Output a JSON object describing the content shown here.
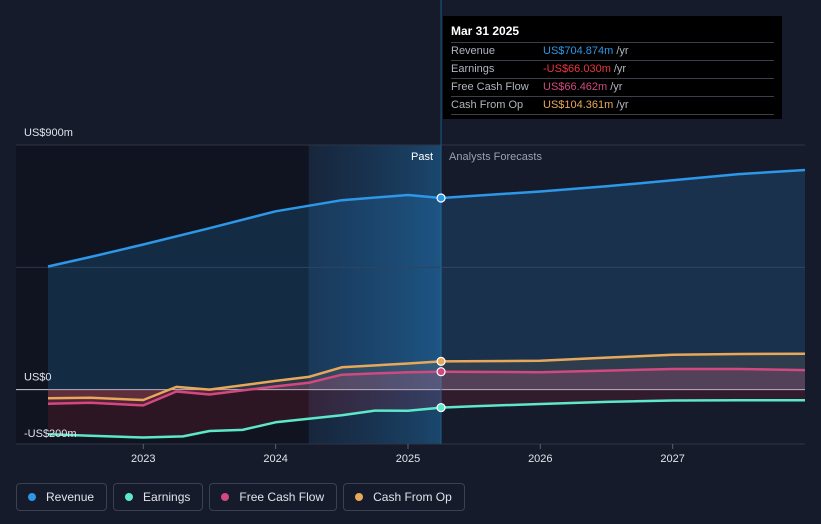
{
  "chart_data": {
    "type": "area",
    "ylabels": [
      "US$900m",
      "US$0",
      "-US$200m"
    ],
    "yticks": [
      900,
      0,
      -200
    ],
    "ylim": [
      -200,
      900
    ],
    "xlim": [
      2022.28,
      2028.0
    ],
    "xticks": [
      "2023",
      "2024",
      "2025",
      "2026",
      "2027"
    ],
    "past_label": "Past",
    "forecast_label": "Analysts Forecasts",
    "past_region_start": 2024.25,
    "divider_x": 2025.25,
    "series": [
      {
        "name": "Revenue",
        "color": "#2d97e8",
        "points": [
          [
            2022.28,
            453
          ],
          [
            2022.6,
            488
          ],
          [
            2023.0,
            534
          ],
          [
            2023.5,
            594
          ],
          [
            2024.0,
            656
          ],
          [
            2024.5,
            697
          ],
          [
            2025.0,
            716
          ],
          [
            2025.25,
            705
          ],
          [
            2026.0,
            729
          ],
          [
            2026.5,
            748
          ],
          [
            2027.0,
            770
          ],
          [
            2027.5,
            793
          ],
          [
            2028.0,
            808
          ]
        ]
      },
      {
        "name": "Earnings",
        "color": "#5ce8c9",
        "points": [
          [
            2022.28,
            -164
          ],
          [
            2022.6,
            -170
          ],
          [
            2023.0,
            -176
          ],
          [
            2023.3,
            -172
          ],
          [
            2023.5,
            -152
          ],
          [
            2023.75,
            -148
          ],
          [
            2024.0,
            -120
          ],
          [
            2024.5,
            -94
          ],
          [
            2024.75,
            -77
          ],
          [
            2025.0,
            -78
          ],
          [
            2025.25,
            -66
          ],
          [
            2025.5,
            -61
          ],
          [
            2026.0,
            -53
          ],
          [
            2026.5,
            -45
          ],
          [
            2027.0,
            -40
          ],
          [
            2027.5,
            -39
          ],
          [
            2028.0,
            -39
          ]
        ]
      },
      {
        "name": "Free Cash Flow",
        "color": "#d1497f",
        "points": [
          [
            2022.28,
            -52
          ],
          [
            2022.6,
            -48
          ],
          [
            2023.0,
            -58
          ],
          [
            2023.25,
            -7
          ],
          [
            2023.5,
            -18
          ],
          [
            2024.0,
            12
          ],
          [
            2024.25,
            25
          ],
          [
            2024.5,
            55
          ],
          [
            2025.0,
            64
          ],
          [
            2025.25,
            66
          ],
          [
            2026.0,
            64
          ],
          [
            2026.5,
            70
          ],
          [
            2027.0,
            76
          ],
          [
            2027.5,
            76
          ],
          [
            2028.0,
            72
          ]
        ]
      },
      {
        "name": "Cash From Op",
        "color": "#e8a85a",
        "points": [
          [
            2022.28,
            -32
          ],
          [
            2022.6,
            -30
          ],
          [
            2023.0,
            -38
          ],
          [
            2023.25,
            10
          ],
          [
            2023.5,
            0
          ],
          [
            2024.0,
            32
          ],
          [
            2024.25,
            47
          ],
          [
            2024.5,
            82
          ],
          [
            2025.0,
            96
          ],
          [
            2025.25,
            104
          ],
          [
            2026.0,
            106
          ],
          [
            2026.5,
            118
          ],
          [
            2027.0,
            128
          ],
          [
            2027.5,
            131
          ],
          [
            2028.0,
            132
          ]
        ]
      }
    ],
    "highlight": [
      {
        "series": "Revenue",
        "x": 2025.25,
        "y": 705
      },
      {
        "series": "Earnings",
        "x": 2025.25,
        "y": -66
      },
      {
        "series": "Free Cash Flow",
        "x": 2025.25,
        "y": 66
      },
      {
        "series": "Cash From Op",
        "x": 2025.25,
        "y": 104
      }
    ]
  },
  "tooltip": {
    "date": "Mar 31 2025",
    "rows": [
      {
        "label": "Revenue",
        "value": "US$704.874m",
        "unit": "/yr",
        "color": "#2d97e8"
      },
      {
        "label": "Earnings",
        "value": "-US$66.030m",
        "unit": "/yr",
        "color": "#e8383d"
      },
      {
        "label": "Free Cash Flow",
        "value": "US$66.462m",
        "unit": "/yr",
        "color": "#d1497f"
      },
      {
        "label": "Cash From Op",
        "value": "US$104.361m",
        "unit": "/yr",
        "color": "#e8a85a"
      }
    ]
  },
  "legend": [
    {
      "label": "Revenue",
      "color": "#2d97e8"
    },
    {
      "label": "Earnings",
      "color": "#5ce8c9"
    },
    {
      "label": "Free Cash Flow",
      "color": "#d1497f"
    },
    {
      "label": "Cash From Op",
      "color": "#e8a85a"
    }
  ]
}
